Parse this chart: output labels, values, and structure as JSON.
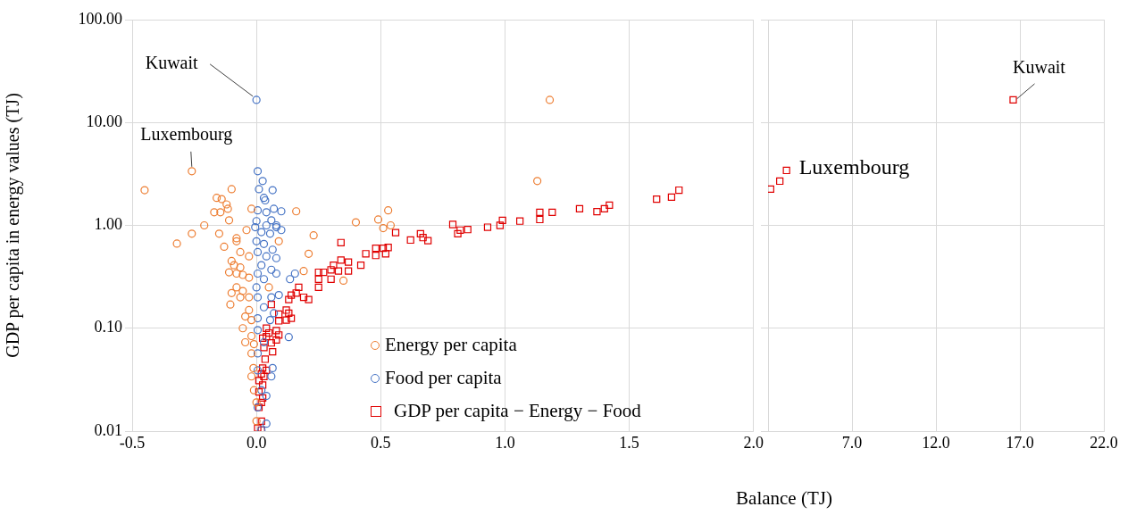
{
  "chart_data": [
    {
      "type": "scatter",
      "xlabel": "Balance (TJ)",
      "ylabel": "GDP per capita in energy values (TJ)",
      "log": "y",
      "grid": true,
      "legend": "bottom right",
      "tick_labels": "xy",
      "xlim": [
        -0.5,
        2.0
      ],
      "xticks": [
        -0.5,
        {
          "value": 0,
          "label": "0.0"
        },
        0.5,
        {
          "value": 1,
          "label": "1.0"
        },
        1.5,
        {
          "value": 2,
          "label": "2.0"
        }
      ],
      "ylim": [
        0.01,
        100
      ],
      "yticks": [
        0.01,
        {
          "value": 0.1,
          "label": "0.10"
        },
        {
          "value": 1,
          "label": "1.00"
        },
        {
          "value": 10,
          "label": "10.00"
        },
        {
          "value": 100,
          "label": "100.00"
        }
      ],
      "annotations": [
        {
          "text": "Kuwait",
          "x": 0.0,
          "y": 16.6
        },
        {
          "text": "Luxembourg",
          "x": -0.26,
          "y": 3.36
        }
      ],
      "series": [
        {
          "name": "Energy per capita",
          "color": "#ed7d31",
          "marker": "circle",
          "x": [
            -0.26,
            -0.45,
            -0.1,
            -0.16,
            -0.14,
            -0.12,
            -0.115,
            -0.17,
            -0.145,
            -0.11,
            -0.02,
            0.16,
            -0.21,
            -0.26,
            -0.15,
            -0.04,
            0.23,
            0.4,
            0.49,
            0.53,
            0.51,
            0.54,
            1.18,
            1.13,
            -0.32,
            -0.13,
            -0.08,
            -0.08,
            -0.065,
            -0.03,
            -0.1,
            -0.09,
            -0.11,
            -0.065,
            -0.08,
            -0.055,
            -0.03,
            -0.08,
            -0.055,
            -0.1,
            -0.065,
            -0.03,
            -0.105,
            -0.03,
            -0.045,
            -0.02,
            -0.055,
            -0.02,
            -0.045,
            -0.01,
            -0.02,
            -0.012,
            -0.02,
            -0.01,
            0.0,
            0.0,
            0.05,
            0.09,
            0.21,
            0.19,
            0.35
          ],
          "values": [
            3.36,
            2.2,
            2.25,
            1.85,
            1.8,
            1.6,
            1.45,
            1.34,
            1.34,
            1.12,
            1.45,
            1.37,
            1.0,
            0.83,
            0.83,
            0.9,
            0.8,
            1.07,
            1.14,
            1.4,
            0.94,
            1.0,
            16.6,
            2.7,
            0.665,
            0.62,
            0.7,
            0.75,
            0.55,
            0.5,
            0.45,
            0.41,
            0.35,
            0.39,
            0.34,
            0.33,
            0.31,
            0.25,
            0.23,
            0.22,
            0.2,
            0.2,
            0.17,
            0.15,
            0.13,
            0.12,
            0.1,
            0.084,
            0.073,
            0.07,
            0.057,
            0.041,
            0.034,
            0.025,
            0.019,
            0.0125,
            0.25,
            0.7,
            0.53,
            0.36,
            0.29
          ]
        },
        {
          "name": "Food per capita",
          "color": "#4472c4",
          "marker": "circle",
          "x": [
            0.0,
            0.005,
            0.025,
            0.01,
            0.065,
            0.03,
            0.035,
            0.005,
            0.04,
            0.07,
            0.1,
            0.06,
            0.0,
            0.08,
            0.1,
            0.055,
            0.02,
            -0.005,
            0.04,
            0.08,
            0.0,
            0.03,
            0.065,
            0.005,
            0.04,
            0.08,
            0.02,
            0.06,
            0.005,
            0.08,
            0.03,
            0.135,
            0.155,
            0.0,
            0.06,
            0.09,
            0.005,
            0.03,
            0.07,
            0.005,
            0.055,
            0.13,
            0.005,
            0.03,
            0.005,
            0.065,
            0.005,
            0.06,
            0.02,
            0.04,
            0.005,
            0.04,
            0.02
          ],
          "values": [
            16.6,
            3.36,
            2.7,
            2.25,
            2.2,
            1.85,
            1.75,
            1.4,
            1.34,
            1.45,
            1.37,
            1.12,
            1.1,
            1.0,
            0.9,
            0.83,
            0.86,
            0.96,
            1.0,
            0.96,
            0.7,
            0.66,
            0.58,
            0.55,
            0.5,
            0.48,
            0.41,
            0.37,
            0.34,
            0.34,
            0.3,
            0.3,
            0.34,
            0.25,
            0.2,
            0.21,
            0.2,
            0.16,
            0.14,
            0.125,
            0.12,
            0.082,
            0.096,
            0.073,
            0.057,
            0.041,
            0.039,
            0.034,
            0.025,
            0.022,
            0.017,
            0.0118,
            0.0102
          ]
        },
        {
          "name": "GDP per capita − Energy − Food",
          "color": "#e00000",
          "marker": "square",
          "x": [
            1.7,
            1.67,
            1.61,
            1.42,
            1.4,
            1.37,
            1.3,
            1.19,
            1.14,
            1.14,
            1.06,
            0.99,
            0.98,
            0.93,
            0.85,
            0.82,
            0.81,
            0.79,
            0.69,
            0.67,
            0.66,
            0.62,
            0.56,
            0.53,
            0.52,
            0.51,
            0.48,
            0.48,
            0.34,
            0.44,
            0.42,
            0.37,
            0.34,
            0.31,
            0.3,
            0.27,
            0.25,
            0.25,
            0.25,
            0.3,
            0.33,
            0.37,
            0.17,
            0.16,
            0.19,
            0.14,
            0.13,
            0.21,
            0.06,
            0.12,
            0.13,
            0.09,
            0.14,
            0.12,
            0.09,
            0.04,
            0.08,
            0.05,
            0.09,
            0.04,
            0.08,
            0.025,
            0.06,
            0.03,
            0.065,
            0.035,
            0.025,
            0.04,
            0.02,
            0.03,
            0.01,
            0.025,
            0.01,
            0.025,
            0.02,
            0.01,
            0.02,
            0.005,
            0.02
          ],
          "values": [
            2.2,
            1.88,
            1.8,
            1.57,
            1.45,
            1.36,
            1.45,
            1.34,
            1.34,
            1.14,
            1.1,
            1.12,
            1.0,
            0.96,
            0.91,
            0.9,
            0.83,
            1.02,
            0.71,
            0.76,
            0.83,
            0.72,
            0.85,
            0.61,
            0.53,
            0.6,
            0.6,
            0.51,
            0.68,
            0.53,
            0.41,
            0.44,
            0.46,
            0.41,
            0.37,
            0.35,
            0.35,
            0.3,
            0.25,
            0.3,
            0.36,
            0.36,
            0.25,
            0.22,
            0.2,
            0.21,
            0.19,
            0.19,
            0.17,
            0.15,
            0.14,
            0.137,
            0.125,
            0.12,
            0.118,
            0.1,
            0.095,
            0.09,
            0.086,
            0.083,
            0.077,
            0.08,
            0.072,
            0.065,
            0.059,
            0.05,
            0.041,
            0.039,
            0.036,
            0.034,
            0.031,
            0.028,
            0.024,
            0.021,
            0.019,
            0.017,
            0.0125,
            0.0107,
            0.0102
          ]
        }
      ]
    },
    {
      "type": "scatter",
      "log": "y",
      "grid": true,
      "tick_labels": "x",
      "xlim": [
        2.0,
        22.0
      ],
      "xticks": [
        {
          "value": 7,
          "label": "7.0"
        },
        {
          "value": 12,
          "label": "12.0"
        },
        {
          "value": 17,
          "label": "17.0"
        },
        {
          "value": 22,
          "label": "22.0"
        }
      ],
      "ylim": [
        0.01,
        100
      ],
      "yticks": [
        {
          "value": 0.01,
          "label": null
        },
        {
          "value": 0.1,
          "label": null
        },
        {
          "value": 1,
          "label": null
        },
        {
          "value": 10,
          "label": null
        },
        {
          "value": 100,
          "label": null
        }
      ],
      "annotations": [
        {
          "text": "Kuwait",
          "x": 16.6,
          "y": 16.6
        },
        {
          "text": "Luxembourg",
          "x": 3.1,
          "y": 3.42
        }
      ],
      "series": [
        {
          "color": "#e00000",
          "marker": "square",
          "x": [
            2.15,
            2.7,
            3.1,
            16.6
          ],
          "values": [
            2.25,
            2.69,
            3.42,
            16.6
          ]
        }
      ]
    }
  ]
}
